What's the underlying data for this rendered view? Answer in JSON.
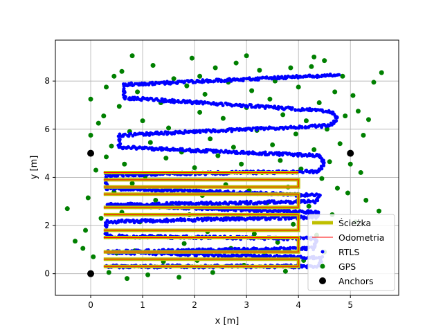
{
  "chart_data": {
    "type": "scatter",
    "title": "",
    "xlabel": "x [m]",
    "ylabel": "y [m]",
    "xlim": [
      -0.68,
      5.93
    ],
    "ylim": [
      -0.9,
      9.7
    ],
    "xticks": [
      0,
      1,
      2,
      3,
      4,
      5
    ],
    "yticks": [
      0,
      2,
      4,
      6,
      8
    ],
    "grid": true,
    "legend_position": "lower-right",
    "colors": {
      "path": "#bfbf00",
      "odometry": "#ff0000",
      "rtls": "#0000ff",
      "gps": "#008000",
      "anchors": "#000000"
    },
    "legend": [
      "Ścieżka",
      "Odometria",
      "RTLS",
      "GPS",
      "Anchors"
    ],
    "anchors": [
      [
        0,
        0
      ],
      [
        0,
        5
      ],
      [
        5,
        5
      ]
    ],
    "path_segments": [
      [
        [
          0.25,
          0.3
        ],
        [
          4.0,
          0.3
        ],
        [
          4.0,
          0.6
        ],
        [
          0.25,
          0.6
        ]
      ],
      [
        [
          0.25,
          0.9
        ],
        [
          4.0,
          0.9
        ],
        [
          4.0,
          1.5
        ],
        [
          0.25,
          1.5
        ]
      ],
      [
        [
          0.25,
          1.8
        ],
        [
          4.0,
          1.8
        ],
        [
          4.0,
          2.45
        ],
        [
          0.25,
          2.45
        ]
      ],
      [
        [
          0.25,
          2.75
        ],
        [
          4.0,
          2.75
        ],
        [
          4.0,
          3.3
        ],
        [
          0.25,
          3.3
        ]
      ],
      [
        [
          0.25,
          3.6
        ],
        [
          4.0,
          3.6
        ],
        [
          4.0,
          3.9
        ],
        [
          0.25,
          3.9
        ]
      ],
      [
        [
          0.25,
          4.2
        ],
        [
          4.0,
          4.2
        ]
      ]
    ],
    "rtls_trajectory": [
      [
        0.3,
        0.3
      ],
      [
        4.4,
        0.3
      ],
      [
        4.45,
        0.65
      ],
      [
        0.3,
        0.9
      ],
      [
        4.3,
        1.05
      ],
      [
        4.35,
        1.45
      ],
      [
        0.3,
        1.55
      ],
      [
        0.3,
        2.15
      ],
      [
        4.35,
        2.35
      ],
      [
        4.4,
        2.55
      ],
      [
        0.3,
        2.85
      ],
      [
        4.35,
        3.0
      ],
      [
        4.4,
        3.25
      ],
      [
        0.3,
        3.55
      ],
      [
        0.3,
        4.1
      ],
      [
        4.4,
        4.25
      ],
      [
        4.5,
        4.6
      ],
      [
        4.4,
        4.9
      ],
      [
        0.55,
        5.25
      ],
      [
        0.55,
        5.75
      ],
      [
        4.6,
        6.15
      ],
      [
        4.75,
        6.45
      ],
      [
        4.6,
        6.75
      ],
      [
        0.65,
        7.3
      ],
      [
        0.65,
        7.85
      ],
      [
        4.8,
        8.25
      ]
    ],
    "gps": [
      [
        -0.45,
        2.7
      ],
      [
        -0.3,
        1.35
      ],
      [
        -0.15,
        1.05
      ],
      [
        -0.1,
        1.8
      ],
      [
        -0.05,
        3.15
      ],
      [
        0.0,
        5.75
      ],
      [
        0.0,
        7.25
      ],
      [
        0.05,
        0.7
      ],
      [
        0.1,
        4.3
      ],
      [
        0.15,
        6.25
      ],
      [
        0.2,
        2.3
      ],
      [
        0.25,
        6.55
      ],
      [
        0.3,
        4.85
      ],
      [
        0.3,
        7.75
      ],
      [
        0.35,
        0.05
      ],
      [
        0.4,
        5.3
      ],
      [
        0.45,
        3.4
      ],
      [
        0.45,
        8.2
      ],
      [
        0.5,
        0.85
      ],
      [
        0.55,
        6.95
      ],
      [
        0.6,
        2.55
      ],
      [
        0.6,
        8.4
      ],
      [
        0.65,
        4.55
      ],
      [
        0.7,
        -0.2
      ],
      [
        0.75,
        5.9
      ],
      [
        0.8,
        3.75
      ],
      [
        0.8,
        9.05
      ],
      [
        0.85,
        0.95
      ],
      [
        0.9,
        7.55
      ],
      [
        0.95,
        2.15
      ],
      [
        1.0,
        6.35
      ],
      [
        1.05,
        4.05
      ],
      [
        1.1,
        -0.05
      ],
      [
        1.15,
        5.45
      ],
      [
        1.2,
        8.65
      ],
      [
        1.25,
        3.05
      ],
      [
        1.3,
        1.55
      ],
      [
        1.35,
        7.1
      ],
      [
        1.4,
        0.5
      ],
      [
        1.45,
        4.8
      ],
      [
        1.5,
        6.05
      ],
      [
        1.55,
        2.85
      ],
      [
        1.6,
        8.1
      ],
      [
        1.65,
        3.55
      ],
      [
        1.7,
        -0.15
      ],
      [
        1.75,
        5.05
      ],
      [
        1.8,
        1.25
      ],
      [
        1.85,
        7.8
      ],
      [
        1.9,
        2.45
      ],
      [
        1.95,
        8.95
      ],
      [
        2.0,
        4.4
      ],
      [
        2.05,
        0.55
      ],
      [
        2.1,
        6.7
      ],
      [
        2.15,
        3.25
      ],
      [
        2.2,
        7.45
      ],
      [
        2.25,
        1.75
      ],
      [
        2.3,
        5.6
      ],
      [
        2.35,
        0.05
      ],
      [
        2.4,
        8.55
      ],
      [
        2.45,
        4.9
      ],
      [
        2.5,
        2.75
      ],
      [
        2.55,
        6.45
      ],
      [
        2.6,
        3.7
      ],
      [
        2.65,
        7.95
      ],
      [
        2.7,
        1.05
      ],
      [
        2.75,
        5.25
      ],
      [
        2.8,
        8.75
      ],
      [
        2.85,
        2.3
      ],
      [
        2.9,
        4.55
      ],
      [
        2.95,
        0.35
      ],
      [
        3.0,
        6.9
      ],
      [
        3.05,
        3.45
      ],
      [
        3.1,
        7.6
      ],
      [
        3.15,
        1.65
      ],
      [
        3.2,
        5.95
      ],
      [
        3.25,
        8.45
      ],
      [
        3.3,
        4.2
      ],
      [
        3.35,
        0.8
      ],
      [
        3.4,
        2.95
      ],
      [
        3.45,
        7.25
      ],
      [
        3.5,
        5.35
      ],
      [
        3.55,
        8.0
      ],
      [
        3.6,
        1.3
      ],
      [
        3.65,
        4.7
      ],
      [
        3.7,
        6.6
      ],
      [
        3.75,
        0.1
      ],
      [
        3.8,
        3.6
      ],
      [
        3.85,
        8.55
      ],
      [
        3.9,
        2.05
      ],
      [
        3.95,
        5.8
      ],
      [
        4.0,
        7.75
      ],
      [
        4.05,
        4.35
      ],
      [
        4.1,
        0.55
      ],
      [
        4.15,
        6.35
      ],
      [
        4.2,
        2.8
      ],
      [
        4.25,
        8.6
      ],
      [
        4.3,
        5.15
      ],
      [
        4.35,
        1.6
      ],
      [
        4.4,
        7.1
      ],
      [
        4.45,
        3.95
      ],
      [
        4.5,
        8.85
      ],
      [
        4.55,
        6.0
      ],
      [
        4.6,
        4.65
      ],
      [
        4.65,
        2.45
      ],
      [
        4.7,
        7.55
      ],
      [
        4.75,
        3.55
      ],
      [
        4.8,
        5.4
      ],
      [
        4.85,
        8.2
      ],
      [
        4.9,
        6.55
      ],
      [
        4.95,
        3.35
      ],
      [
        5.0,
        4.55
      ],
      [
        5.05,
        7.4
      ],
      [
        5.1,
        2.15
      ],
      [
        5.15,
        6.75
      ],
      [
        5.2,
        4.2
      ],
      [
        5.25,
        5.75
      ],
      [
        5.3,
        3.05
      ],
      [
        5.35,
        6.4
      ],
      [
        5.45,
        7.95
      ],
      [
        5.55,
        2.6
      ],
      [
        5.6,
        8.35
      ],
      [
        4.5,
        0.9
      ],
      [
        4.3,
        9.0
      ],
      [
        3.0,
        9.05
      ],
      [
        2.1,
        8.2
      ]
    ]
  }
}
